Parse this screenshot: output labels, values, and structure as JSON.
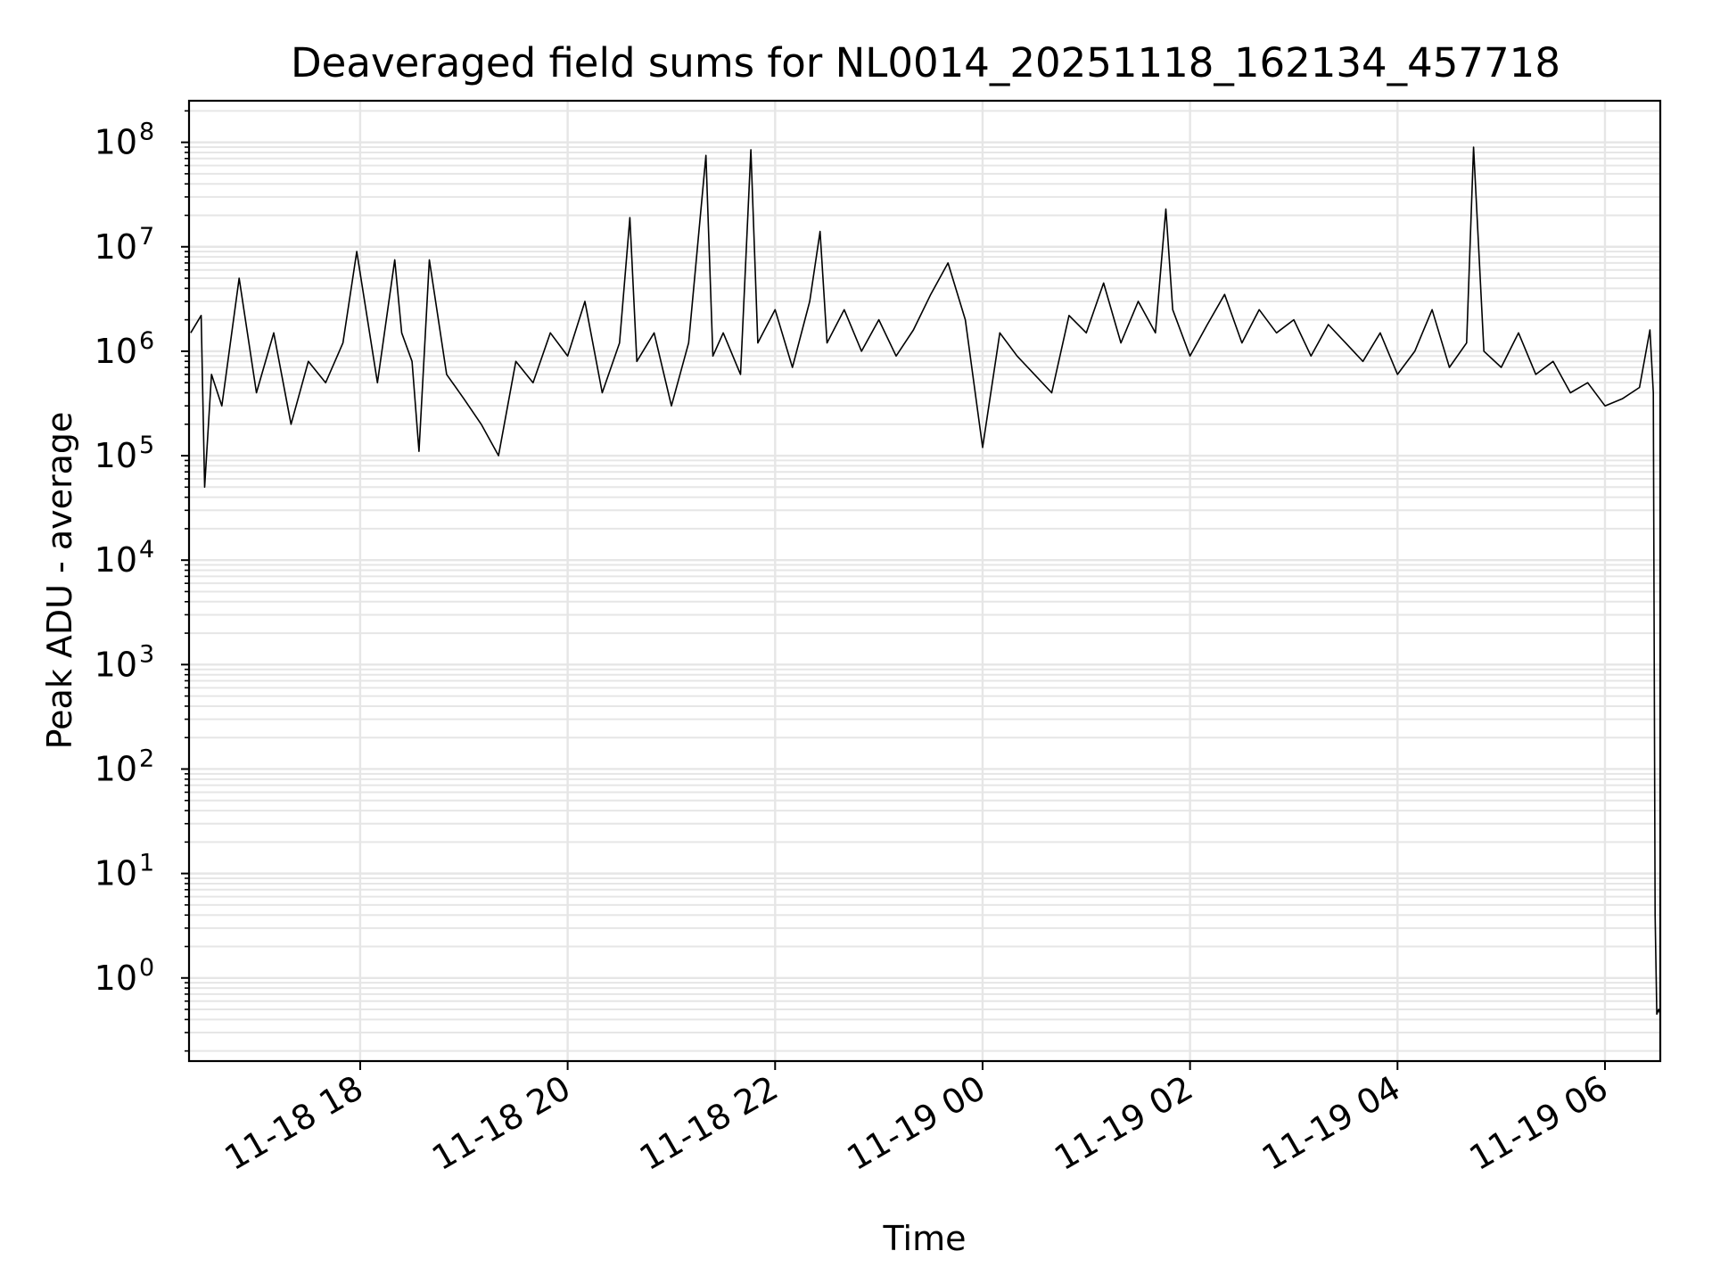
{
  "chart_data": {
    "type": "line",
    "title": "Deaveraged field sums for NL0014_20251118_162134_457718",
    "xlabel": "Time",
    "ylabel": "Peak ADU - average",
    "x_start": "2025-11-18 16:21:34",
    "x_end": "2025-11-19 06:32",
    "xlim": [
      "2025-11-18 16:21",
      "2025-11-19 06:32"
    ],
    "yscale": "log",
    "ylim": [
      0.16,
      250000000.0
    ],
    "grid": true,
    "line_color": "#000000",
    "grid_color": "#e6e6e6",
    "x_ticks": [
      {
        "value": "2025-11-18 18:00",
        "label": "11-18 18"
      },
      {
        "value": "2025-11-18 20:00",
        "label": "11-18 20"
      },
      {
        "value": "2025-11-18 22:00",
        "label": "11-18 22"
      },
      {
        "value": "2025-11-19 00:00",
        "label": "11-19 00"
      },
      {
        "value": "2025-11-19 02:00",
        "label": "11-19 02"
      },
      {
        "value": "2025-11-19 04:00",
        "label": "11-19 04"
      },
      {
        "value": "2025-11-19 06:00",
        "label": "11-19 06"
      }
    ],
    "y_ticks": [
      {
        "value": 1,
        "base": "10",
        "exp": "0"
      },
      {
        "value": 10,
        "base": "10",
        "exp": "1"
      },
      {
        "value": 100,
        "base": "10",
        "exp": "2"
      },
      {
        "value": 1000,
        "base": "10",
        "exp": "3"
      },
      {
        "value": 10000,
        "base": "10",
        "exp": "4"
      },
      {
        "value": 100000,
        "base": "10",
        "exp": "5"
      },
      {
        "value": 1000000,
        "base": "10",
        "exp": "6"
      },
      {
        "value": 10000000,
        "base": "10",
        "exp": "7"
      },
      {
        "value": 100000000,
        "base": "10",
        "exp": "8"
      }
    ],
    "series": [
      {
        "x": [
          "2025-11-18 16:22",
          "2025-11-18 16:28",
          "2025-11-18 16:30",
          "2025-11-18 16:34",
          "2025-11-18 16:40",
          "2025-11-18 16:50",
          "2025-11-18 17:00",
          "2025-11-18 17:10",
          "2025-11-18 17:20",
          "2025-11-18 17:30",
          "2025-11-18 17:40",
          "2025-11-18 17:50",
          "2025-11-18 17:58",
          "2025-11-18 18:10",
          "2025-11-18 18:20",
          "2025-11-18 18:24",
          "2025-11-18 18:30",
          "2025-11-18 18:34",
          "2025-11-18 18:40",
          "2025-11-18 18:50",
          "2025-11-18 19:00",
          "2025-11-18 19:10",
          "2025-11-18 19:20",
          "2025-11-18 19:30",
          "2025-11-18 19:40",
          "2025-11-18 19:50",
          "2025-11-18 20:00",
          "2025-11-18 20:10",
          "2025-11-18 20:20",
          "2025-11-18 20:30",
          "2025-11-18 20:36",
          "2025-11-18 20:40",
          "2025-11-18 20:50",
          "2025-11-18 21:00",
          "2025-11-18 21:10",
          "2025-11-18 21:20",
          "2025-11-18 21:24",
          "2025-11-18 21:30",
          "2025-11-18 21:40",
          "2025-11-18 21:46",
          "2025-11-18 21:50",
          "2025-11-18 22:00",
          "2025-11-18 22:10",
          "2025-11-18 22:20",
          "2025-11-18 22:26",
          "2025-11-18 22:30",
          "2025-11-18 22:40",
          "2025-11-18 22:50",
          "2025-11-18 23:00",
          "2025-11-18 23:10",
          "2025-11-18 23:20",
          "2025-11-18 23:30",
          "2025-11-18 23:40",
          "2025-11-18 23:50",
          "2025-11-19 00:00",
          "2025-11-19 00:10",
          "2025-11-19 00:20",
          "2025-11-19 00:30",
          "2025-11-19 00:40",
          "2025-11-19 00:50",
          "2025-11-19 01:00",
          "2025-11-19 01:10",
          "2025-11-19 01:20",
          "2025-11-19 01:30",
          "2025-11-19 01:40",
          "2025-11-19 01:46",
          "2025-11-19 01:50",
          "2025-11-19 02:00",
          "2025-11-19 02:10",
          "2025-11-19 02:20",
          "2025-11-19 02:30",
          "2025-11-19 02:40",
          "2025-11-19 02:50",
          "2025-11-19 03:00",
          "2025-11-19 03:10",
          "2025-11-19 03:20",
          "2025-11-19 03:30",
          "2025-11-19 03:40",
          "2025-11-19 03:50",
          "2025-11-19 04:00",
          "2025-11-19 04:10",
          "2025-11-19 04:20",
          "2025-11-19 04:30",
          "2025-11-19 04:40",
          "2025-11-19 04:44",
          "2025-11-19 04:50",
          "2025-11-19 05:00",
          "2025-11-19 05:10",
          "2025-11-19 05:20",
          "2025-11-19 05:30",
          "2025-11-19 05:40",
          "2025-11-19 05:50",
          "2025-11-19 06:00",
          "2025-11-19 06:10",
          "2025-11-19 06:20",
          "2025-11-19 06:26",
          "2025-11-19 06:28",
          "2025-11-19 06:29",
          "2025-11-19 06:30",
          "2025-11-19 06:31",
          "2025-11-19 06:32"
        ],
        "y": [
          1500000,
          2200000,
          50000,
          600000,
          300000,
          5000000,
          400000,
          1500000,
          200000,
          800000,
          500000,
          1200000,
          9000000,
          500000,
          7500000,
          1500000,
          800000,
          110000,
          7500000,
          600000,
          350000,
          200000,
          100000,
          800000,
          500000,
          1500000,
          900000,
          3000000,
          400000,
          1200000,
          19000000,
          800000,
          1500000,
          300000,
          1200000,
          75000000,
          900000,
          1500000,
          600000,
          85000000,
          1200000,
          2500000,
          700000,
          3000000,
          14000000,
          1200000,
          2500000,
          1000000,
          2000000,
          900000,
          1600000,
          3500000,
          7000000,
          2000000,
          120000,
          1500000,
          900000,
          600000,
          400000,
          2200000,
          1500000,
          4500000,
          1200000,
          3000000,
          1500000,
          23000000,
          2500000,
          900000,
          1800000,
          3500000,
          1200000,
          2500000,
          1500000,
          2000000,
          900000,
          1800000,
          1200000,
          800000,
          1500000,
          600000,
          1000000,
          2500000,
          700000,
          1200000,
          90000000,
          1000000,
          700000,
          1500000,
          600000,
          800000,
          400000,
          500000,
          300000,
          350000,
          450000,
          1600000,
          400000,
          4,
          0.45,
          0.5,
          0.45
        ]
      }
    ]
  }
}
